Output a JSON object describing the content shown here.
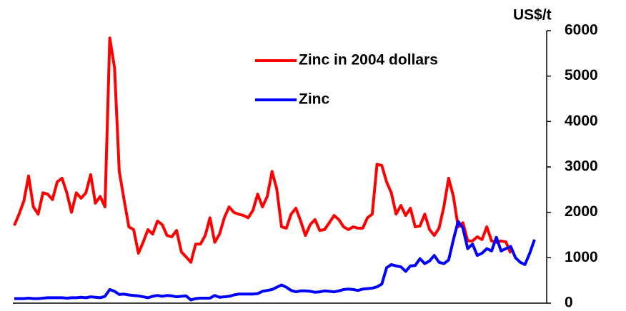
{
  "chart_data": {
    "type": "line",
    "y_axis_label": "US$/t",
    "ylim": [
      0,
      6000
    ],
    "yticks": [
      0,
      1000,
      2000,
      3000,
      4000,
      5000,
      6000
    ],
    "series": [
      {
        "name": "Zinc in 2004 dollars",
        "color": "#ff0000",
        "values": [
          1710,
          1960,
          2250,
          2800,
          2120,
          1960,
          2430,
          2400,
          2280,
          2670,
          2750,
          2430,
          2000,
          2430,
          2310,
          2430,
          2830,
          2200,
          2350,
          2120,
          5840,
          5180,
          2900,
          2280,
          1680,
          1620,
          1100,
          1340,
          1620,
          1520,
          1810,
          1730,
          1490,
          1460,
          1600,
          1130,
          1020,
          900,
          1300,
          1300,
          1490,
          1880,
          1340,
          1520,
          1880,
          2120,
          2000,
          1960,
          1930,
          1880,
          2040,
          2400,
          2120,
          2350,
          2900,
          2510,
          1680,
          1650,
          1960,
          2090,
          1810,
          1490,
          1730,
          1840,
          1600,
          1620,
          1770,
          1930,
          1840,
          1680,
          1620,
          1680,
          1650,
          1650,
          1880,
          1960,
          3060,
          3030,
          2670,
          2430,
          1960,
          2150,
          1930,
          2090,
          1680,
          1700,
          1960,
          1620,
          1490,
          1650,
          2120,
          2750,
          2350,
          1680,
          1770,
          1370,
          1370,
          1460,
          1400,
          1680,
          1370,
          1340,
          1370,
          1350,
          1100,
          null,
          null,
          null,
          null,
          null
        ]
      },
      {
        "name": "Zinc",
        "color": "#0000ff",
        "values": [
          100,
          100,
          100,
          110,
          100,
          100,
          110,
          120,
          120,
          120,
          120,
          110,
          120,
          120,
          130,
          120,
          140,
          130,
          120,
          150,
          300,
          260,
          190,
          200,
          180,
          170,
          160,
          140,
          120,
          150,
          170,
          150,
          170,
          160,
          140,
          150,
          160,
          70,
          100,
          110,
          110,
          110,
          170,
          130,
          140,
          150,
          180,
          200,
          200,
          200,
          200,
          210,
          260,
          280,
          300,
          350,
          400,
          350,
          280,
          250,
          270,
          270,
          260,
          240,
          250,
          270,
          260,
          250,
          270,
          300,
          310,
          300,
          280,
          310,
          320,
          330,
          360,
          420,
          780,
          850,
          820,
          800,
          700,
          820,
          830,
          980,
          870,
          930,
          1050,
          900,
          870,
          950,
          1400,
          1800,
          1650,
          1200,
          1300,
          1050,
          1100,
          1200,
          1150,
          1450,
          1150,
          1200,
          1250,
          1000,
          900,
          850,
          1100,
          1400
        ]
      }
    ]
  }
}
